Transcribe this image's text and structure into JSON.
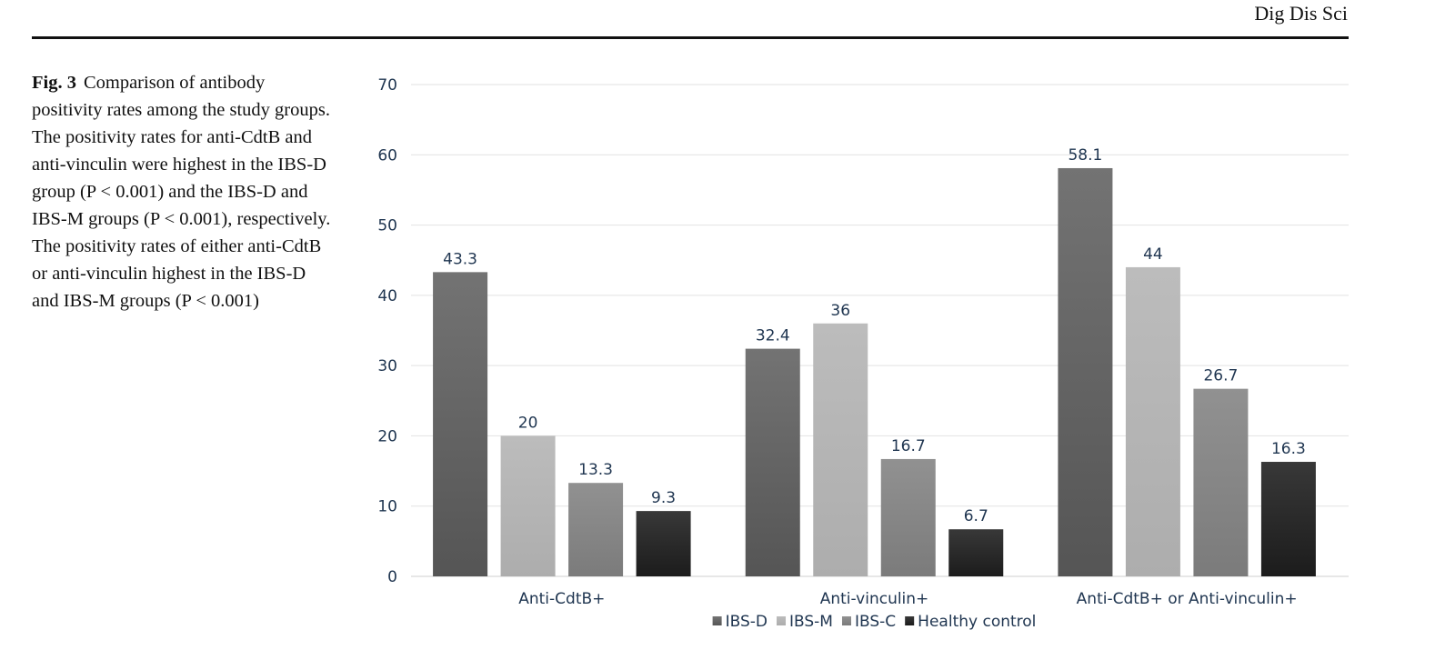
{
  "header": {
    "journal": "Dig Dis Sci"
  },
  "caption": {
    "label": "Fig. 3",
    "text": "Comparison of antibody positivity rates among the study groups. The positivity rates for anti-CdtB and anti-vinculin were highest in the IBS-D group (P < 0.001) and the IBS-D and IBS-M groups (P < 0.001), respectively. The positivity rates of either anti-CdtB or anti-vinculin highest in the IBS-D and IBS-M groups (P < 0.001)"
  },
  "chart_data": {
    "type": "bar",
    "categories": [
      "Anti-CdtB+",
      "Anti-vinculin+",
      "Anti-CdtB+ or Anti-vinculin+"
    ],
    "series": [
      {
        "name": "IBS-D",
        "values": [
          43.3,
          32.4,
          58.1
        ],
        "color": "#5e5e5e"
      },
      {
        "name": "IBS-M",
        "values": [
          20,
          36,
          44
        ],
        "color": "#b4b4b4"
      },
      {
        "name": "IBS-C",
        "values": [
          13.3,
          16.7,
          26.7
        ],
        "color": "#858585"
      },
      {
        "name": "Healthy control",
        "values": [
          9.3,
          6.7,
          16.3
        ],
        "color": "#262626"
      }
    ],
    "data_labels": [
      [
        "43.3",
        "32.4",
        "58.1"
      ],
      [
        "20",
        "36",
        "44"
      ],
      [
        "13.3",
        "16.7",
        "26.7"
      ],
      [
        "9.3",
        "6.7",
        "16.3"
      ]
    ],
    "yticks": [
      "0",
      "10",
      "20",
      "30",
      "40",
      "50",
      "60",
      "70"
    ],
    "ylim": [
      0,
      70
    ],
    "grid": true,
    "legend_position": "bottom",
    "label_color": "#1f3550"
  }
}
